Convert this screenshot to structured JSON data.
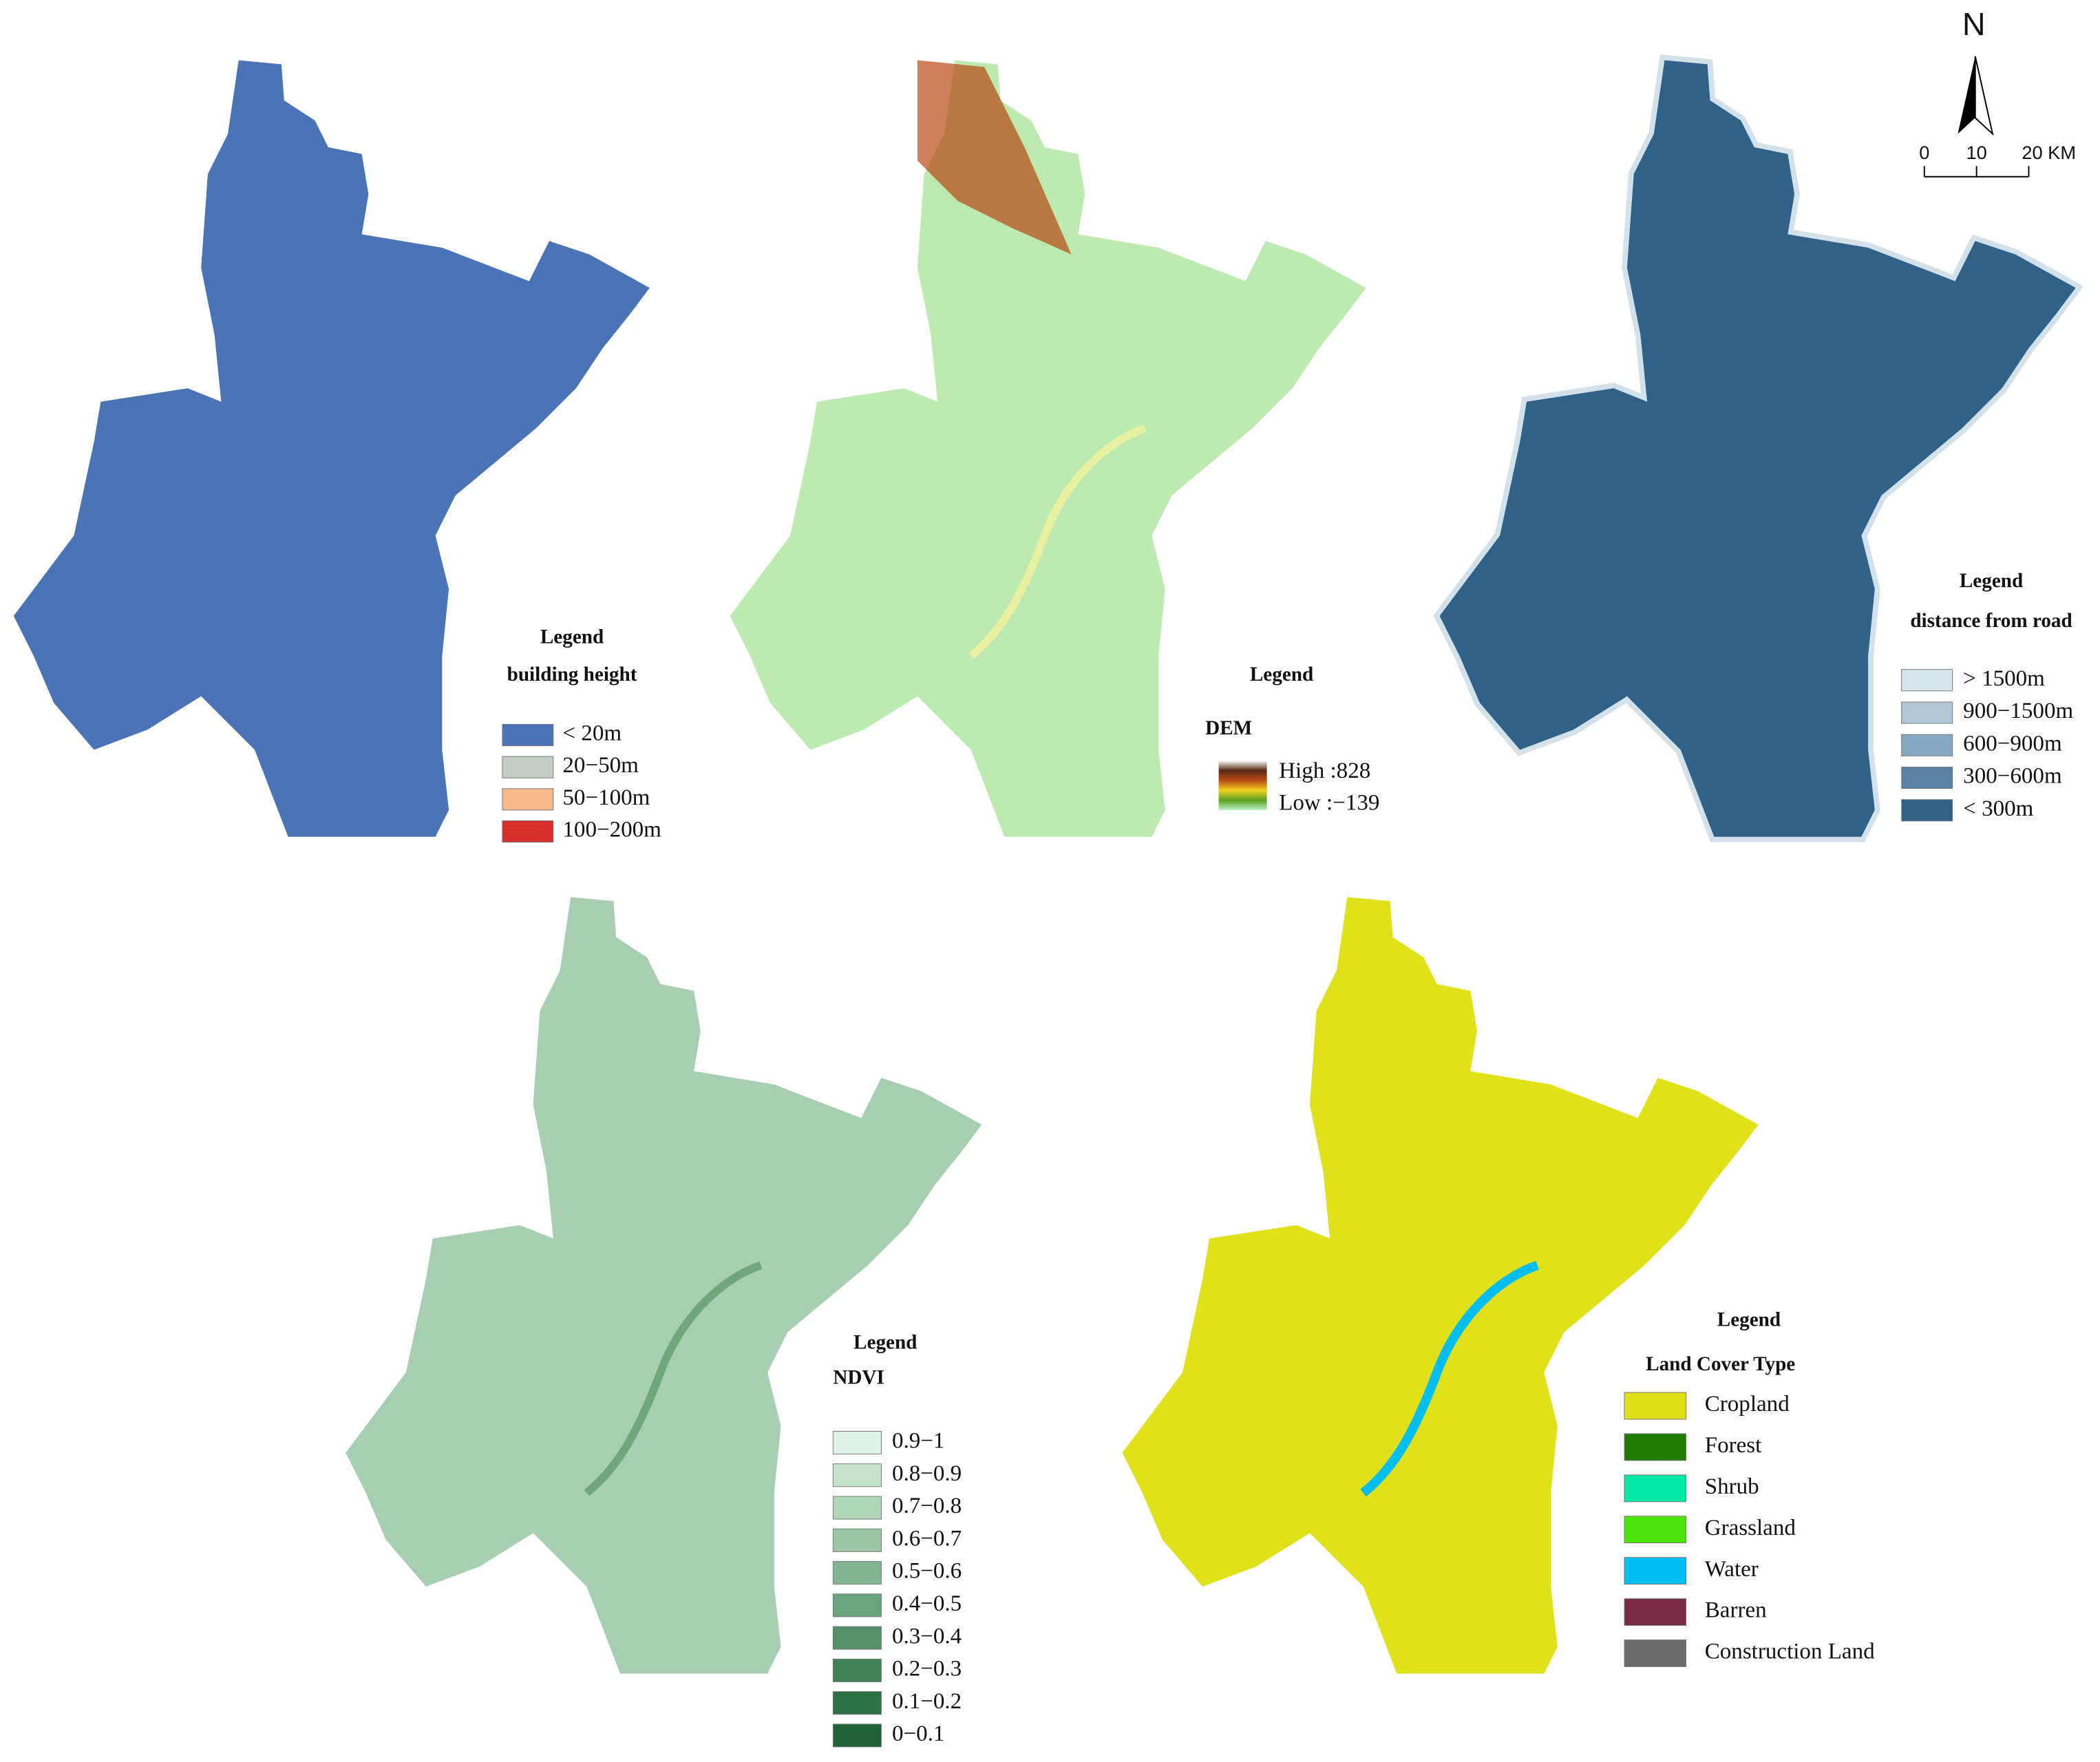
{
  "north": "N",
  "scale_bar": {
    "labels": [
      "0",
      "10",
      "20 KM"
    ]
  },
  "panels": [
    {
      "map_color": "#4a74b5",
      "legend": {
        "title": "Legend",
        "subtitle": "building height",
        "items": [
          {
            "label": "< 20m",
            "color": "#4a74b5"
          },
          {
            "label": "20−50m",
            "color": "#c3cfc3"
          },
          {
            "label": "50−100m",
            "color": "#f7b98a"
          },
          {
            "label": "100−200m",
            "color": "#d7302a"
          }
        ]
      }
    },
    {
      "map_color": "#bdeab0",
      "accent_color": "#e6f0a0",
      "legend": {
        "title": "Legend",
        "subtitle": "DEM",
        "gradient": [
          "#ffffff",
          "#5a2a12",
          "#b84a12",
          "#f0d020",
          "#5aa020",
          "#b8f0c0"
        ],
        "items": [
          {
            "label": "High :828"
          },
          {
            "label": "Low :−139"
          }
        ]
      }
    },
    {
      "map_color": "#2f6189",
      "accent_color": "#d3e2ea",
      "legend": {
        "title": "Legend",
        "subtitle": "distance from road",
        "items": [
          {
            "label": "> 1500m",
            "color": "#d6e4ec"
          },
          {
            "label": "900−1500m",
            "color": "#aec6d6"
          },
          {
            "label": "600−900m",
            "color": "#88a8c2"
          },
          {
            "label": "300−600m",
            "color": "#5a80a4"
          },
          {
            "label": "< 300m",
            "color": "#2f6189"
          }
        ]
      }
    },
    {
      "map_color": "#a8ceb1",
      "accent_color": "#6fa67c",
      "legend": {
        "title": "Legend",
        "subtitle": "NDVI",
        "items": [
          {
            "label": "0.9−1",
            "color": "#e0f4e6"
          },
          {
            "label": "0.8−0.9",
            "color": "#c6e4cc"
          },
          {
            "label": "0.7−0.8",
            "color": "#b0d6b8"
          },
          {
            "label": "0.6−0.7",
            "color": "#9ac8a4"
          },
          {
            "label": "0.5−0.6",
            "color": "#82b690"
          },
          {
            "label": "0.4−0.5",
            "color": "#6aa47a"
          },
          {
            "label": "0.3−0.4",
            "color": "#529266"
          },
          {
            "label": "0.2−0.3",
            "color": "#3e8254"
          },
          {
            "label": "0.1−0.2",
            "color": "#2c7244"
          },
          {
            "label": "0−0.1",
            "color": "#1e6236"
          }
        ]
      }
    },
    {
      "map_color": "#dfe21a",
      "accent_color": "#6b6b6b",
      "legend": {
        "title": "Legend",
        "subtitle": "Land Cover Type",
        "items": [
          {
            "label": "Cropland",
            "color": "#e0e01a"
          },
          {
            "label": "Forest",
            "color": "#1f7a06"
          },
          {
            "label": "Shrub",
            "color": "#00e8a6"
          },
          {
            "label": "Grassland",
            "color": "#4ae40a"
          },
          {
            "label": "Water",
            "color": "#00bdf2"
          },
          {
            "label": "Barren",
            "color": "#7a2a45"
          },
          {
            "label": "Construction Land",
            "color": "#6b6b6b"
          }
        ]
      }
    }
  ]
}
